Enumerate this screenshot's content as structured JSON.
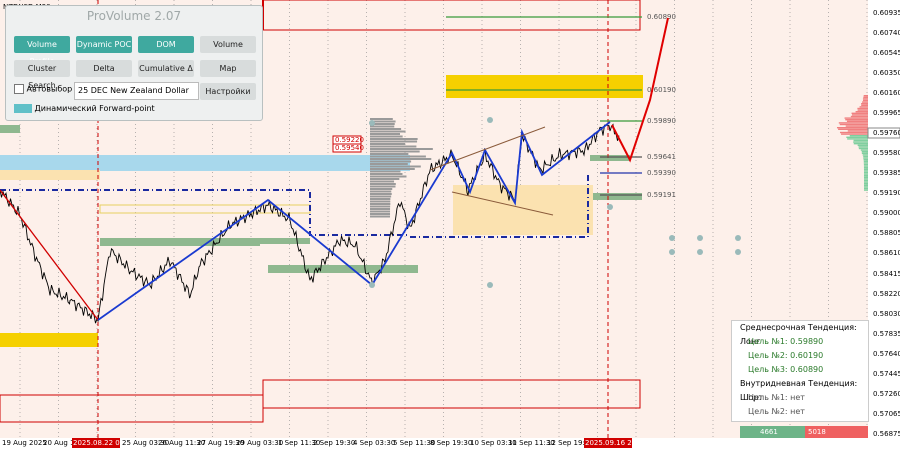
{
  "symbol": "NZDUSD,M30",
  "panel": {
    "title": "ProVolume 2.07",
    "buttons": [
      "Volume Profile",
      "Dynamic POC",
      "DOM",
      "Volume",
      "Cluster Search",
      "Delta",
      "Cumulative Δ",
      "Map"
    ],
    "auto_select": "Автовыбор",
    "instrument": "25 DEC New Zealand Dollar",
    "settings": "Настройки",
    "forward_point": "Динамический Forward-point"
  },
  "price_axis": {
    "labels": [
      "0.60935",
      "0.60740",
      "0.60545",
      "0.60350",
      "0.60160",
      "0.59965",
      "0.59580",
      "0.59385",
      "0.59190",
      "0.59000",
      "0.58805",
      "0.58610",
      "0.58415",
      "0.58220",
      "0.58030",
      "0.57835",
      "0.57640",
      "0.57445",
      "0.57260",
      "0.57065",
      "0.56875"
    ],
    "current_price": "0.59760"
  },
  "levels": [
    "0.60890",
    "0.60190",
    "0.59890",
    "0.59641",
    "0.59390",
    "0.59191"
  ],
  "boxed_levels": [
    "0.59220",
    "0.59540"
  ],
  "time_axis": {
    "labels": [
      "19 Aug 2025",
      "20 Aug 11:30",
      "2025.08.22 09:00",
      "25 Aug 03:30",
      "26 Aug 11:30",
      "27 Aug 19:30",
      "29 Aug 03:30",
      "1 Sep 11:30",
      "2 Sep 19:30",
      "4 Sep 03:30",
      "5 Sep 11:30",
      "8 Sep 19:30",
      "10 Sep 03:30",
      "11 Sep 11:30",
      "12 Sep 19:30",
      "2025.09.16 21:00"
    ]
  },
  "trend_box": {
    "lines": [
      "Среднесрочная Тенденция: Лонг",
      "Цель №1: 0.59890",
      "Цель №2: 0.60190",
      "Цель №3: 0.60890",
      "Внутридневная Тенденция: Шорт",
      "Цель №1: нет",
      "Цель №2: нет"
    ]
  },
  "delta_bar": {
    "buy": "4661",
    "sell": "5018"
  }
}
